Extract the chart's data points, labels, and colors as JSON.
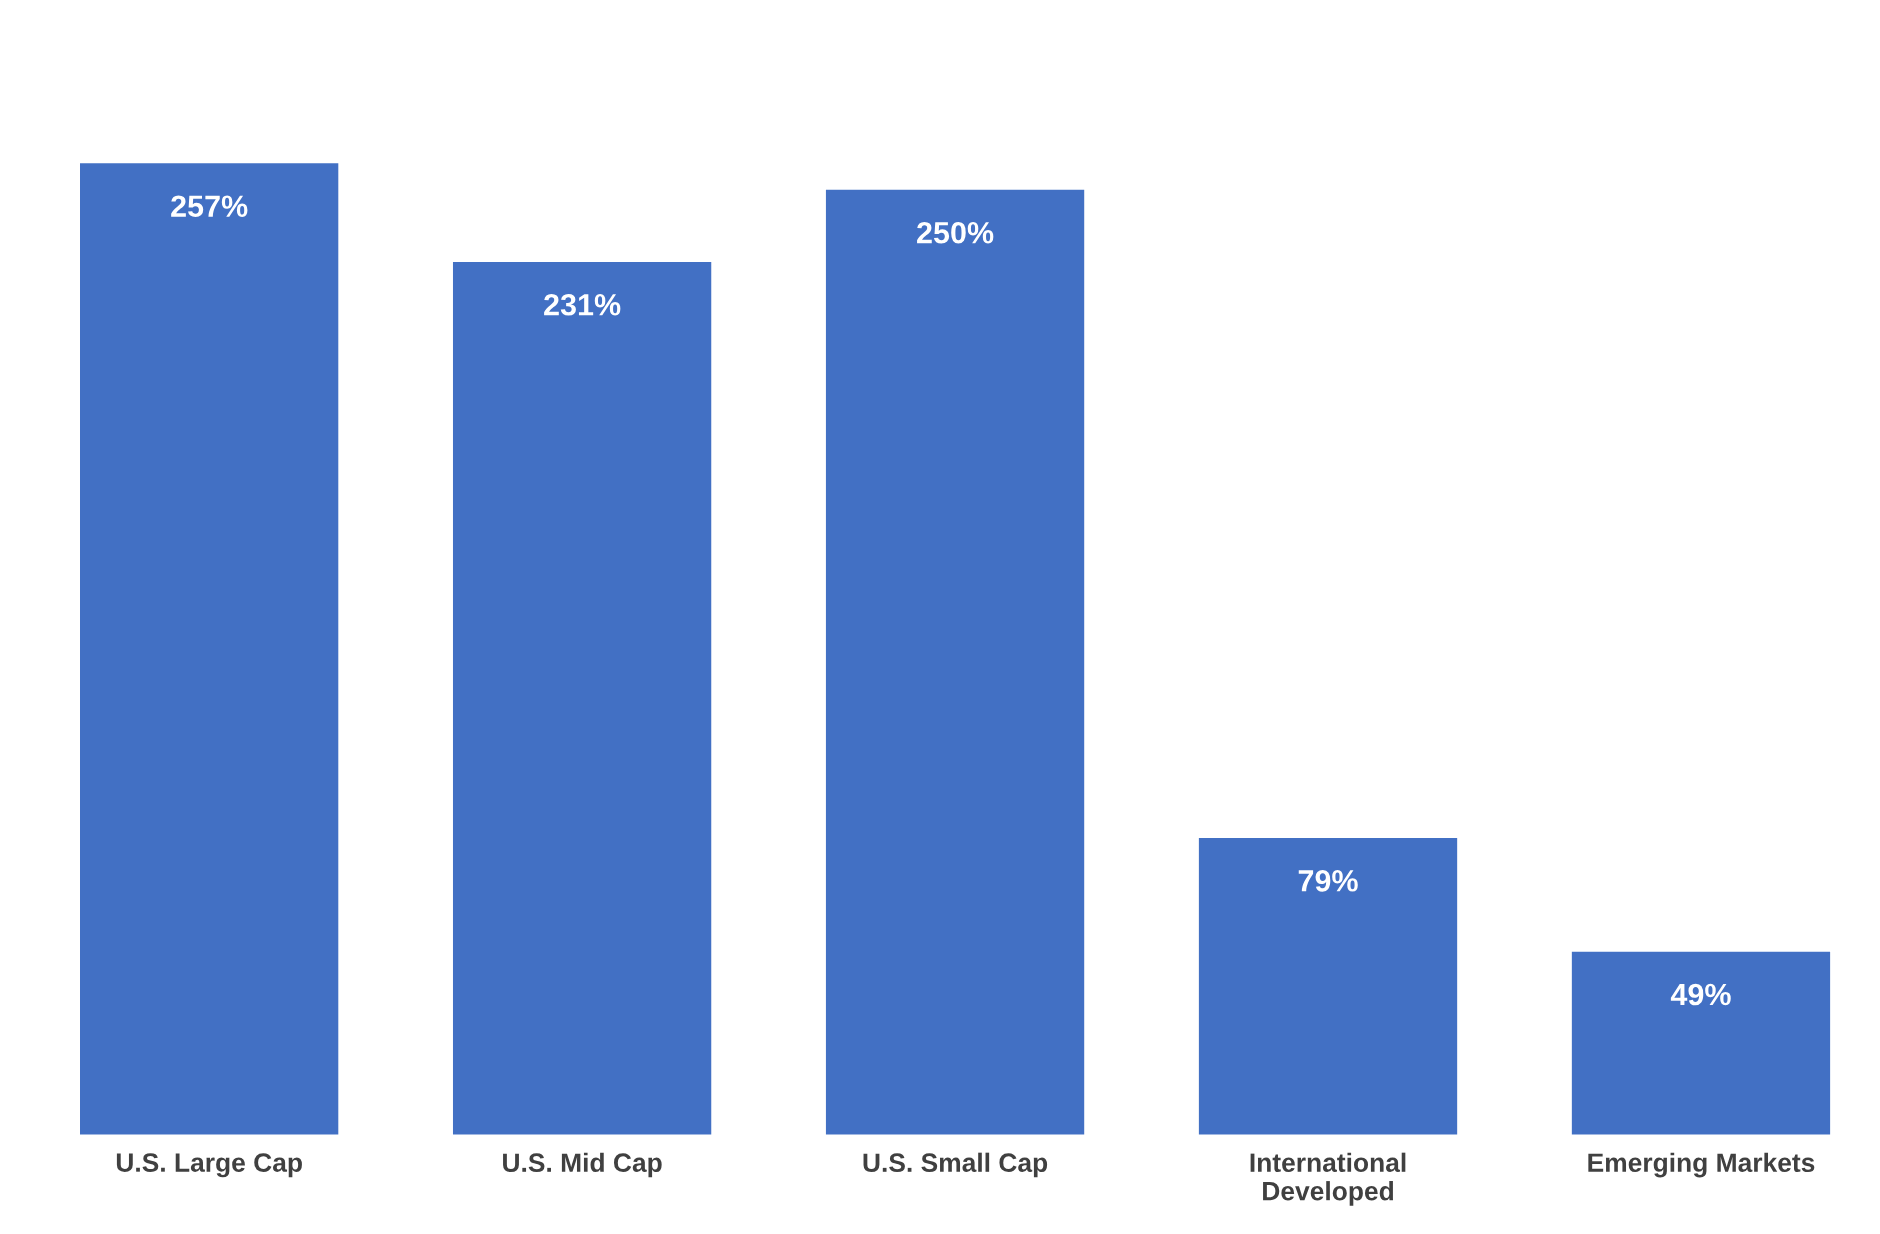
{
  "chart_data": {
    "type": "bar",
    "categories": [
      "U.S. Large Cap",
      "U.S. Mid Cap",
      "U.S. Small Cap",
      "International\nDeveloped",
      "Emerging Markets"
    ],
    "values": [
      257,
      231,
      250,
      79,
      49
    ],
    "value_labels": [
      "257%",
      "231%",
      "250%",
      "79%",
      "49%"
    ],
    "color": "#4270c4",
    "grid": false,
    "legend": false
  }
}
